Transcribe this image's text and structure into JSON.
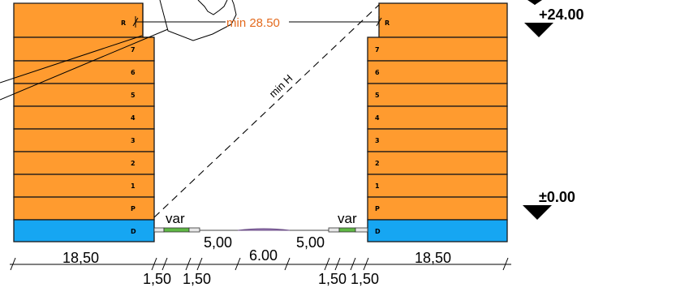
{
  "left_building": {
    "floors": [
      "R",
      "7",
      "6",
      "5",
      "4",
      "3",
      "2",
      "1",
      "P"
    ],
    "basement": "D",
    "width_label": "18,50"
  },
  "right_building": {
    "floors": [
      "R",
      "7",
      "6",
      "5",
      "4",
      "3",
      "2",
      "1",
      "P"
    ],
    "basement": "D",
    "width_label": "18,50"
  },
  "levels": {
    "top": "+24.00",
    "ground": "±0.00"
  },
  "annotations": {
    "min_distance": "min 28.50",
    "min_height": "min H",
    "var_left": "var",
    "var_right": "var"
  },
  "street_dims": {
    "sidewalk_left": "1,50",
    "strip_left": "1,50",
    "lane_left": "5,00",
    "median": "6.00",
    "lane_right": "5,00",
    "strip_right": "1,50",
    "sidewalk_right": "1,50"
  },
  "colors": {
    "floor_fill": "#FF9B2F",
    "basement_fill": "#16A6F2",
    "annotation": "#E36A1E",
    "grass": "#5FB845",
    "median": "#9B7BB8"
  }
}
